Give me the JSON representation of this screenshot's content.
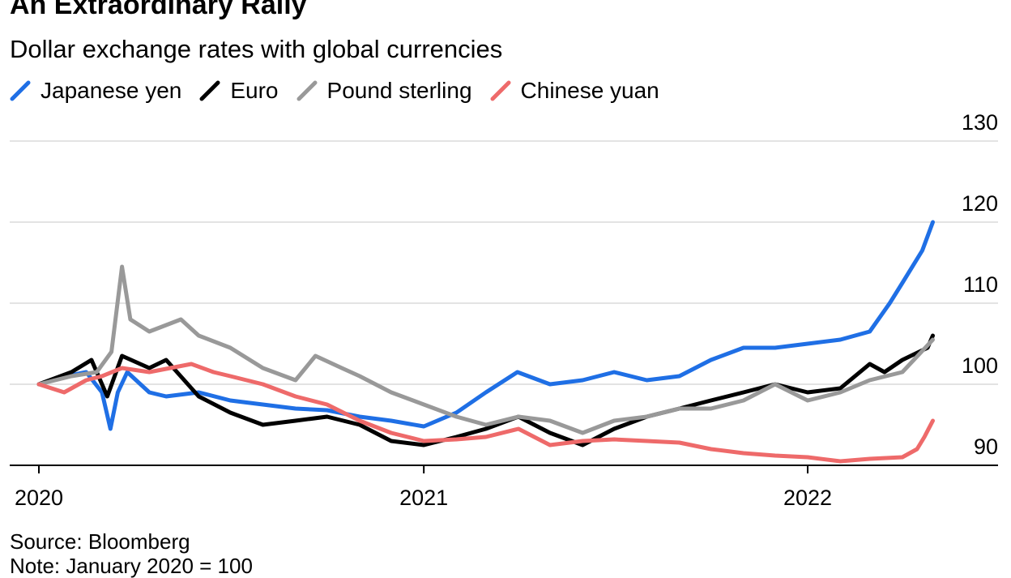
{
  "title": "An Extraordinary Rally",
  "subtitle": "Dollar exchange rates with global currencies",
  "source": "Source: Bloomberg",
  "note": "Note: January 2020 = 100",
  "chart_data": {
    "type": "line",
    "ylim": [
      88,
      130
    ],
    "yticks": [
      90,
      100,
      110,
      120,
      130
    ],
    "xlim": [
      "2020-01-01",
      "2022-07-01"
    ],
    "xticks": [
      {
        "label": "2020",
        "date": "2020-01-01"
      },
      {
        "label": "2021",
        "date": "2021-01-01"
      },
      {
        "label": "2022",
        "date": "2022-01-01"
      }
    ],
    "legend_position": "top-left",
    "gridlines": true,
    "series": [
      {
        "name": "Japanese yen",
        "color": "#1f6fe5",
        "points": [
          [
            "2020-01-01",
            100
          ],
          [
            "2020-01-20",
            100.8
          ],
          [
            "2020-02-15",
            101.5
          ],
          [
            "2020-03-01",
            99
          ],
          [
            "2020-03-09",
            94.5
          ],
          [
            "2020-03-16",
            99
          ],
          [
            "2020-03-25",
            101.5
          ],
          [
            "2020-04-15",
            99
          ],
          [
            "2020-05-01",
            98.5
          ],
          [
            "2020-06-01",
            99
          ],
          [
            "2020-07-01",
            98
          ],
          [
            "2020-08-01",
            97.5
          ],
          [
            "2020-09-01",
            97
          ],
          [
            "2020-10-01",
            96.8
          ],
          [
            "2020-11-01",
            96
          ],
          [
            "2020-12-01",
            95.5
          ],
          [
            "2021-01-01",
            94.8
          ],
          [
            "2021-02-01",
            96.5
          ],
          [
            "2021-03-01",
            99
          ],
          [
            "2021-03-31",
            101.5
          ],
          [
            "2021-05-01",
            100
          ],
          [
            "2021-06-01",
            100.5
          ],
          [
            "2021-07-01",
            101.5
          ],
          [
            "2021-08-01",
            100.5
          ],
          [
            "2021-09-01",
            101
          ],
          [
            "2021-10-01",
            103
          ],
          [
            "2021-11-01",
            104.5
          ],
          [
            "2021-12-01",
            104.5
          ],
          [
            "2022-01-01",
            105
          ],
          [
            "2022-02-01",
            105.5
          ],
          [
            "2022-03-01",
            106.5
          ],
          [
            "2022-03-20",
            110
          ],
          [
            "2022-04-01",
            112.5
          ],
          [
            "2022-04-20",
            116.5
          ],
          [
            "2022-04-30",
            120
          ]
        ]
      },
      {
        "name": "Euro",
        "color": "#000000",
        "points": [
          [
            "2020-01-01",
            100
          ],
          [
            "2020-02-01",
            101.5
          ],
          [
            "2020-02-20",
            103
          ],
          [
            "2020-03-06",
            98.5
          ],
          [
            "2020-03-20",
            103.5
          ],
          [
            "2020-04-15",
            102
          ],
          [
            "2020-05-01",
            103
          ],
          [
            "2020-06-01",
            98.5
          ],
          [
            "2020-07-01",
            96.5
          ],
          [
            "2020-08-01",
            95
          ],
          [
            "2020-09-01",
            95.5
          ],
          [
            "2020-10-01",
            96
          ],
          [
            "2020-11-01",
            95
          ],
          [
            "2020-12-01",
            93
          ],
          [
            "2021-01-01",
            92.5
          ],
          [
            "2021-02-01",
            93.5
          ],
          [
            "2021-03-01",
            94.5
          ],
          [
            "2021-04-01",
            96
          ],
          [
            "2021-05-01",
            94
          ],
          [
            "2021-06-01",
            92.5
          ],
          [
            "2021-07-01",
            94.5
          ],
          [
            "2021-08-01",
            96
          ],
          [
            "2021-09-01",
            97
          ],
          [
            "2021-10-01",
            98
          ],
          [
            "2021-11-01",
            99
          ],
          [
            "2021-12-01",
            100
          ],
          [
            "2022-01-01",
            99
          ],
          [
            "2022-02-01",
            99.5
          ],
          [
            "2022-03-01",
            102.5
          ],
          [
            "2022-03-15",
            101.5
          ],
          [
            "2022-04-01",
            103
          ],
          [
            "2022-04-25",
            104.5
          ],
          [
            "2022-04-30",
            106
          ]
        ]
      },
      {
        "name": "Pound sterling",
        "color": "#999999",
        "points": [
          [
            "2020-01-01",
            100
          ],
          [
            "2020-02-01",
            101
          ],
          [
            "2020-02-25",
            101.5
          ],
          [
            "2020-03-10",
            104
          ],
          [
            "2020-03-20",
            114.5
          ],
          [
            "2020-03-28",
            108
          ],
          [
            "2020-04-15",
            106.5
          ],
          [
            "2020-05-15",
            108
          ],
          [
            "2020-06-01",
            106
          ],
          [
            "2020-07-01",
            104.5
          ],
          [
            "2020-08-01",
            102
          ],
          [
            "2020-09-01",
            100.5
          ],
          [
            "2020-09-20",
            103.5
          ],
          [
            "2020-10-15",
            102
          ],
          [
            "2020-11-01",
            101
          ],
          [
            "2020-12-01",
            99
          ],
          [
            "2021-01-01",
            97.5
          ],
          [
            "2021-02-01",
            96
          ],
          [
            "2021-03-01",
            95
          ],
          [
            "2021-04-01",
            96
          ],
          [
            "2021-05-01",
            95.5
          ],
          [
            "2021-06-01",
            94
          ],
          [
            "2021-07-01",
            95.5
          ],
          [
            "2021-08-01",
            96
          ],
          [
            "2021-09-01",
            97
          ],
          [
            "2021-10-01",
            97
          ],
          [
            "2021-11-01",
            98
          ],
          [
            "2021-12-01",
            100
          ],
          [
            "2022-01-01",
            98
          ],
          [
            "2022-02-01",
            99
          ],
          [
            "2022-03-01",
            100.5
          ],
          [
            "2022-04-01",
            101.5
          ],
          [
            "2022-04-30",
            105.5
          ]
        ]
      },
      {
        "name": "Chinese yuan",
        "color": "#ee6a6a",
        "points": [
          [
            "2020-01-01",
            100
          ],
          [
            "2020-01-25",
            99
          ],
          [
            "2020-02-15",
            100.5
          ],
          [
            "2020-03-01",
            101
          ],
          [
            "2020-03-20",
            102
          ],
          [
            "2020-04-15",
            101.5
          ],
          [
            "2020-05-25",
            102.5
          ],
          [
            "2020-06-15",
            101.5
          ],
          [
            "2020-07-01",
            101
          ],
          [
            "2020-08-01",
            100
          ],
          [
            "2020-09-01",
            98.5
          ],
          [
            "2020-10-01",
            97.5
          ],
          [
            "2020-11-01",
            95.5
          ],
          [
            "2020-12-01",
            94
          ],
          [
            "2021-01-01",
            93
          ],
          [
            "2021-02-01",
            93.2
          ],
          [
            "2021-03-01",
            93.5
          ],
          [
            "2021-04-01",
            94.5
          ],
          [
            "2021-05-01",
            92.5
          ],
          [
            "2021-06-01",
            93
          ],
          [
            "2021-07-01",
            93.2
          ],
          [
            "2021-08-01",
            93
          ],
          [
            "2021-09-01",
            92.8
          ],
          [
            "2021-10-01",
            92
          ],
          [
            "2021-11-01",
            91.5
          ],
          [
            "2021-12-01",
            91.2
          ],
          [
            "2022-01-01",
            91
          ],
          [
            "2022-02-01",
            90.5
          ],
          [
            "2022-03-01",
            90.8
          ],
          [
            "2022-04-01",
            91
          ],
          [
            "2022-04-15",
            92
          ],
          [
            "2022-04-22",
            93.5
          ],
          [
            "2022-04-30",
            95.5
          ]
        ]
      }
    ]
  }
}
